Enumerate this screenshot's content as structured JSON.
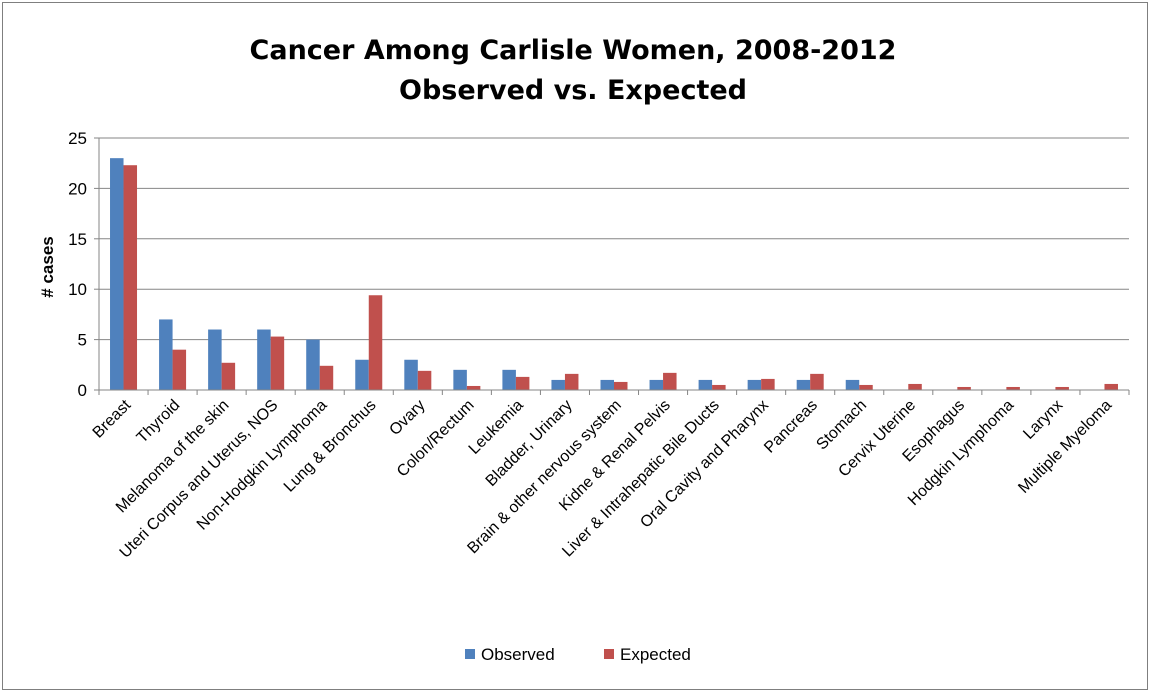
{
  "chart_data": {
    "type": "bar",
    "title": [
      "Cancer Among Carlisle Women, 2008-2012",
      "Observed vs. Expected"
    ],
    "ylabel": "# cases",
    "ylim": [
      0,
      25
    ],
    "yticks": [
      0,
      5,
      10,
      15,
      20,
      25
    ],
    "grid": true,
    "legend_placement": "bottom",
    "categories": [
      "Breast",
      "Thyroid",
      "Melanoma of the skin",
      "Uteri Corpus and Uterus, NOS",
      "Non-Hodgkin Lymphoma",
      "Lung & Bronchus",
      "Ovary",
      "Colon/Rectum",
      "Leukemia",
      "Bladder, Urinary",
      "Brain & other nervous system",
      "Kidne & Renal Pelvis",
      "Liver & Intrahepatic Bile Ducts",
      "Oral Cavity and Pharynx",
      "Pancreas",
      "Stomach",
      "Cervix Uterine",
      "Esophagus",
      "Hodgkin Lymphoma",
      "Larynx",
      "Multiple Myeloma"
    ],
    "series": [
      {
        "name": "Observed",
        "color": "#4f81bd",
        "values": [
          23,
          7,
          6,
          6,
          5,
          3,
          3,
          2,
          2,
          1,
          1,
          1,
          1,
          1,
          1,
          1,
          0,
          0,
          0,
          0,
          0
        ]
      },
      {
        "name": "Expected",
        "color": "#c0504d",
        "values": [
          22.3,
          4,
          2.7,
          5.3,
          2.4,
          9.4,
          1.9,
          0.4,
          1.3,
          1.6,
          0.8,
          1.7,
          0.5,
          1.1,
          1.6,
          0.5,
          0.6,
          0.3,
          0.3,
          0.3,
          0.6
        ]
      }
    ]
  }
}
